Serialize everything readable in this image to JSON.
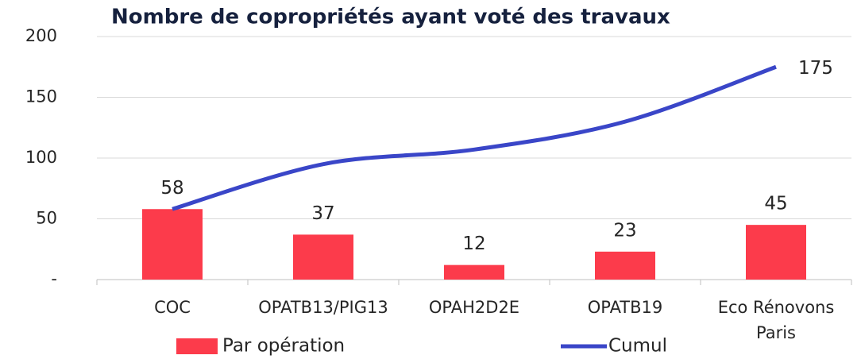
{
  "chart_data": {
    "type": "bar_line",
    "title": "Nombre de copropriétés ayant voté des travaux",
    "categories": [
      "COC",
      "OPATB13/PIG13",
      "OPAH2D2E",
      "OPATB19",
      "Eco Rénovons Paris"
    ],
    "series": [
      {
        "name": "Par opération",
        "type": "bar",
        "color": "#fc3b4b",
        "values": [
          58,
          37,
          12,
          23,
          45
        ]
      },
      {
        "name": "Cumul",
        "type": "line",
        "color": "#3a46c8",
        "values": [
          58,
          95,
          107,
          130,
          175
        ],
        "value_labels": [
          null,
          null,
          null,
          null,
          "175"
        ]
      }
    ],
    "ylim": [
      0,
      200
    ],
    "yticks": [
      {
        "value": 0,
        "label": "-"
      },
      50,
      100,
      150,
      200
    ],
    "grid": true,
    "legend": "bottom"
  }
}
